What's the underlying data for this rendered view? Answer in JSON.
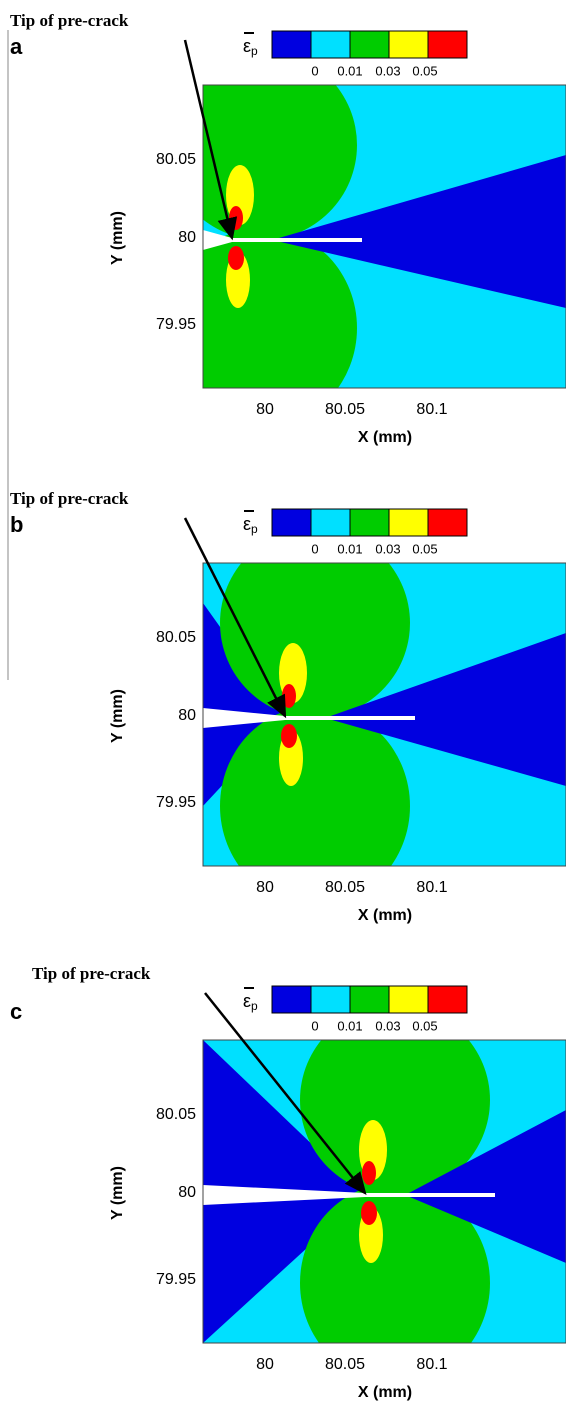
{
  "panels": [
    {
      "letter": "a",
      "annotation": "Tip of pre-crack",
      "colorbar": {
        "symbol": "ε",
        "subscript": "p",
        "ticks": [
          "0",
          "0.01",
          "0.03",
          "0.05"
        ]
      },
      "xlabel": "X (mm)",
      "ylabel": "Y (mm)",
      "xticks": [
        "80",
        "80.05",
        "80.1"
      ],
      "yticks": [
        "80.05",
        "80",
        "79.95"
      ]
    },
    {
      "letter": "b",
      "annotation": "Tip of pre-crack",
      "colorbar": {
        "symbol": "ε",
        "subscript": "p",
        "ticks": [
          "0",
          "0.01",
          "0.03",
          "0.05"
        ]
      },
      "xlabel": "X (mm)",
      "ylabel": "Y (mm)",
      "xticks": [
        "80",
        "80.05",
        "80.1"
      ],
      "yticks": [
        "80.05",
        "80",
        "79.95"
      ]
    },
    {
      "letter": "c",
      "annotation": "Tip of pre-crack",
      "colorbar": {
        "symbol": "ε",
        "subscript": "p",
        "ticks": [
          "0",
          "0.01",
          "0.03",
          "0.05"
        ]
      },
      "xlabel": "X (mm)",
      "ylabel": "Y (mm)",
      "xticks": [
        "80",
        "80.05",
        "80.1"
      ],
      "yticks": [
        "80.05",
        "80",
        "79.95"
      ]
    }
  ]
}
